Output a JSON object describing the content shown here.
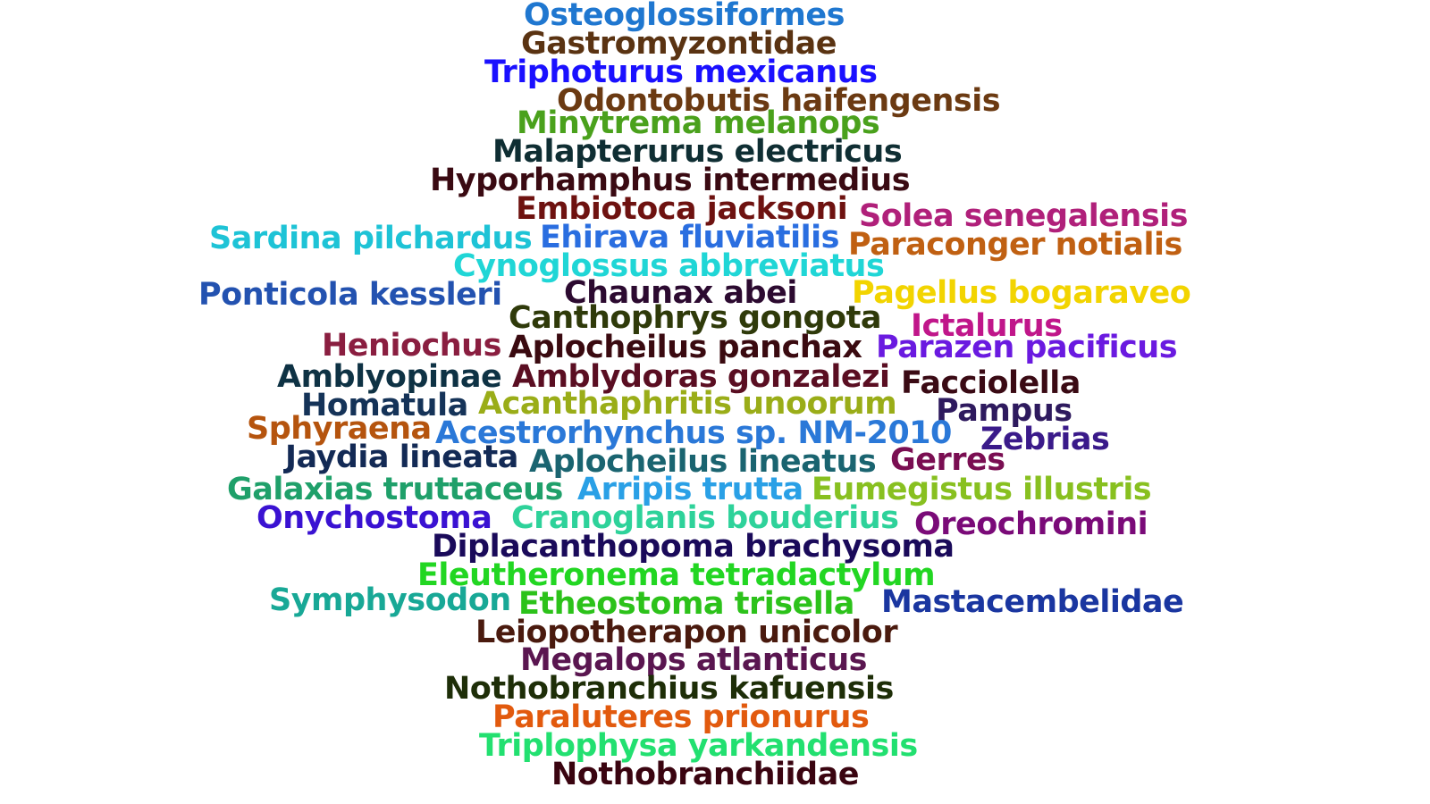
{
  "words": [
    {
      "text": "Osteoglossiformes",
      "color": "#1f77d0"
    },
    {
      "text": "Gastromyzontidae",
      "color": "#5a3312"
    },
    {
      "text": "Triphoturus mexicanus",
      "color": "#1a10ff"
    },
    {
      "text": "Odontobutis haifengensis",
      "color": "#6b3a12"
    },
    {
      "text": "Minytrema melanops",
      "color": "#4aa11c"
    },
    {
      "text": "Malapterurus electricus",
      "color": "#0f2e33"
    },
    {
      "text": "Hyporhamphus intermedius",
      "color": "#3a0a12"
    },
    {
      "text": "Embiotoca jacksoni",
      "color": "#6e1210"
    },
    {
      "text": "Solea senegalensis",
      "color": "#b0207a"
    },
    {
      "text": "Sardina pilchardus",
      "color": "#1ec3d6"
    },
    {
      "text": "Ehirava fluviatilis",
      "color": "#2a6ee0"
    },
    {
      "text": "Paraconger notialis",
      "color": "#c06012"
    },
    {
      "text": "Cynoglossus abbreviatus",
      "color": "#20d6d6"
    },
    {
      "text": "Ponticola kessleri",
      "color": "#2352b0"
    },
    {
      "text": "Chaunax abei",
      "color": "#2c0a30"
    },
    {
      "text": "Pagellus bogaraveo",
      "color": "#f2d400"
    },
    {
      "text": "Canthophrys gongota",
      "color": "#2f3a0a"
    },
    {
      "text": "Ictalurus",
      "color": "#c0168a"
    },
    {
      "text": "Heniochus",
      "color": "#8a1e40"
    },
    {
      "text": "Aplocheilus panchax",
      "color": "#3a0a10"
    },
    {
      "text": "Parazen pacificus",
      "color": "#6a1ae0"
    },
    {
      "text": "Amblyopinae",
      "color": "#0e3244"
    },
    {
      "text": "Amblydoras gonzalezi",
      "color": "#5a0e22"
    },
    {
      "text": "Facciolella",
      "color": "#3a0a14"
    },
    {
      "text": "Homatula",
      "color": "#153358"
    },
    {
      "text": "Acanthaphritis unoorum",
      "color": "#9aad18"
    },
    {
      "text": "Pampus",
      "color": "#2e1a5e"
    },
    {
      "text": "Sphyraena",
      "color": "#b5540e"
    },
    {
      "text": "Acestrorhynchus sp. NM-2010",
      "color": "#2a78d8"
    },
    {
      "text": "Zebrias",
      "color": "#3a1a8a"
    },
    {
      "text": "Jaydia lineata",
      "color": "#132a55"
    },
    {
      "text": "Aplocheilus lineatus",
      "color": "#1a6470"
    },
    {
      "text": "Gerres",
      "color": "#7a0e52"
    },
    {
      "text": "Galaxias truttaceus",
      "color": "#1fa06a"
    },
    {
      "text": "Arripis trutta",
      "color": "#2aa0e6"
    },
    {
      "text": "Eumegistus illustris",
      "color": "#88c020"
    },
    {
      "text": "Onychostoma",
      "color": "#3a12d2"
    },
    {
      "text": "Cranoglanis bouderius",
      "color": "#2ed29a"
    },
    {
      "text": "Oreochromini",
      "color": "#7a0a78"
    },
    {
      "text": "Diplacanthopoma brachysoma",
      "color": "#1a0a5a"
    },
    {
      "text": "Eleutheronema tetradactylum",
      "color": "#22d622"
    },
    {
      "text": "Symphysodon",
      "color": "#18a896"
    },
    {
      "text": "Etheostoma trisella",
      "color": "#2cc21a"
    },
    {
      "text": "Mastacembelidae",
      "color": "#1a36a0"
    },
    {
      "text": "Leiopotherapon unicolor",
      "color": "#4a1a0e"
    },
    {
      "text": "Megalops atlanticus",
      "color": "#5a1650"
    },
    {
      "text": "Nothobranchius kafuensis",
      "color": "#1e2e08"
    },
    {
      "text": "Paraluteres prionurus",
      "color": "#e25a0e"
    },
    {
      "text": "Triplophysa yarkandensis",
      "color": "#22e070"
    },
    {
      "text": "Nothobranchiidae",
      "color": "#3a0410"
    }
  ]
}
